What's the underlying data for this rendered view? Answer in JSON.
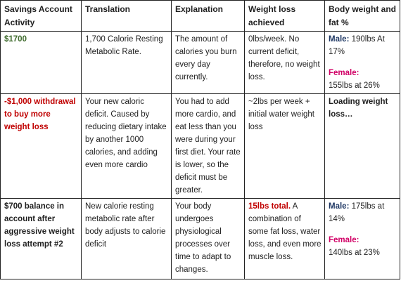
{
  "headers": {
    "activity": "Savings Account Activity",
    "translation": "Translation",
    "explanation": "Explanation",
    "weight_loss": "Weight loss achieved",
    "body": "Body weight and fat %"
  },
  "rows": [
    {
      "activity": "$1700",
      "translation": "1,700 Calorie Resting Metabolic Rate.",
      "explanation": "The amount of calories you burn every day currently.",
      "weight_loss_text": "0lbs/week. No current deficit, therefore, no weight loss.",
      "male_label": "Male:",
      "male_value": " 190lbs At 17%",
      "female_label": "Female:",
      "female_value": "155lbs at 26%"
    },
    {
      "activity": "-$1,000 withdrawal to buy more weight loss",
      "translation": "Your new caloric deficit. Caused by reducing dietary intake by another 1000 calories, and adding even more cardio",
      "explanation": "You had to add more cardio, and eat less than you were during your first diet. Your rate is lower, so the deficit must be greater.",
      "weight_loss_text": "~2lbs per week + initial water weight loss",
      "body_text": "Loading weight loss…"
    },
    {
      "activity": "$700 balance in account after aggressive weight loss attempt #2",
      "translation": "New calorie resting metabolic rate after body adjusts to calorie deficit",
      "explanation": "Your body undergoes physiological processes over time to adapt to changes.",
      "weight_loss_highlight": "15lbs total.",
      "weight_loss_text": " A combination of some fat loss, water loss, and even more muscle loss.",
      "male_label": "Male:",
      "male_value": " 175lbs at 14%",
      "female_label": "Female:",
      "female_value": "140lbs at 23%"
    }
  ],
  "colors": {
    "green": "#3f6b2d",
    "red": "#c00000",
    "navy": "#1f3864",
    "pink": "#d10066"
  }
}
